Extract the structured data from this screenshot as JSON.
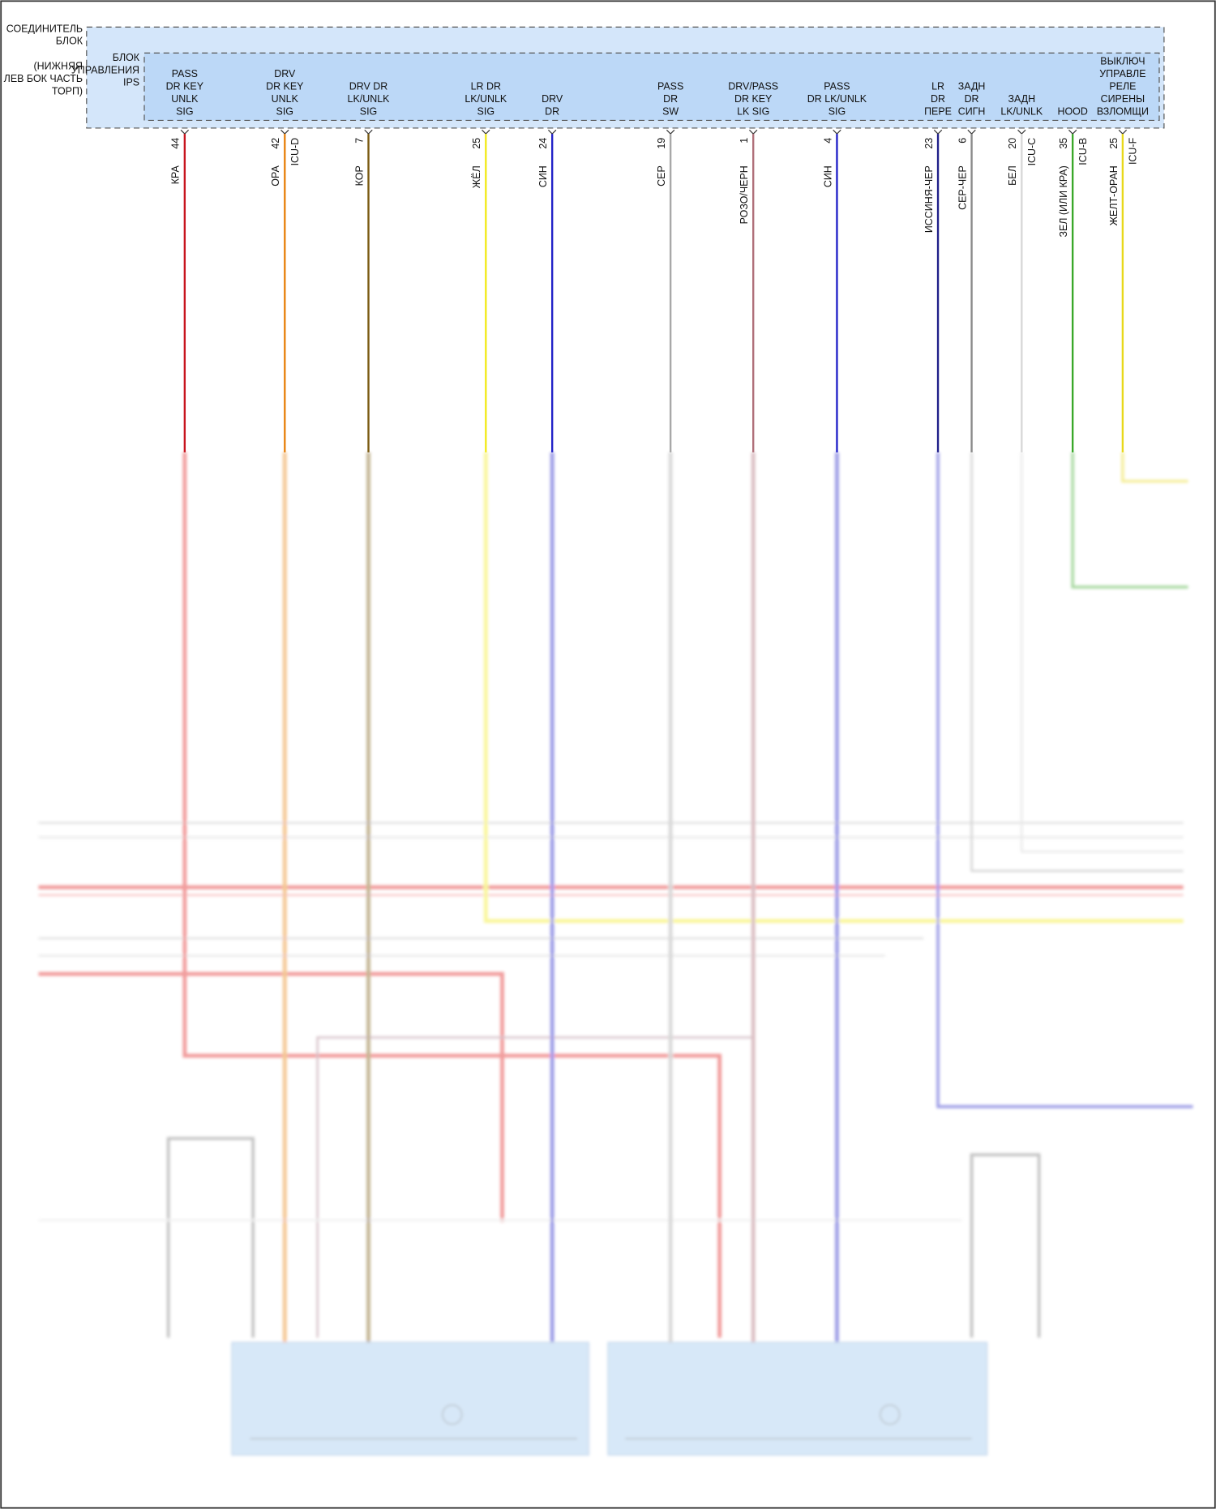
{
  "connector": [
    "СОЕДИНИТЕЛЬ",
    "БЛОК",
    "(НИЖНЯЯ",
    "ЛЕВ БОК ЧАСТЬ",
    "ТОРП)"
  ],
  "module": [
    "БЛОК",
    "УПРАВЛЕНИЯ",
    "IPS"
  ],
  "pins": [
    {
      "label": [
        "PASS",
        "DR KEY",
        "UNLK",
        "SIG"
      ],
      "pin": "44",
      "wire": "КРА",
      "color": "#c8141e"
    },
    {
      "label": [
        "DRV",
        "DR KEY",
        "UNLK",
        "SIG"
      ],
      "pin": "42",
      "wire": "ОРА",
      "icu": "ICU-D",
      "color": "#e8820f"
    },
    {
      "label": [
        "DRV DR",
        "LK/UNLK",
        "SIG"
      ],
      "pin": "7",
      "wire": "КОР",
      "color": "#7a5a10"
    },
    {
      "label": [
        "LR DR",
        "LK/UNLK",
        "SIG"
      ],
      "pin": "25",
      "wire": "ЖЁЛ",
      "color": "#f2ea1c"
    },
    {
      "label": [
        "DRV",
        "DR"
      ],
      "pin": "24",
      "wire": "СИН",
      "color": "#2222c8"
    },
    {
      "label": [
        "PASS",
        "DR",
        "SW"
      ],
      "pin": "19",
      "wire": "СЕР",
      "color": "#a8a8a8"
    },
    {
      "label": [
        "DRV/PASS",
        "DR KEY",
        "LK SIG"
      ],
      "pin": "1",
      "wire": "РОЗО/ЧЕРН",
      "color": "#b0707a"
    },
    {
      "label": [
        "PASS",
        "DR LK/UNLK",
        "SIG"
      ],
      "pin": "4",
      "wire": "СИН",
      "color": "#2222c8"
    },
    {
      "label": [
        "LR",
        "DR",
        "ПЕРЕ"
      ],
      "pin": "23",
      "wire": "ИССИНЯ-ЧЕР",
      "color": "#20208a"
    },
    {
      "label": [
        "ЗАДН",
        "DR",
        "СИГН"
      ],
      "pin": "6",
      "wire": "СЕР-ЧЕР",
      "color": "#8a8a8a"
    },
    {
      "label": [
        "ЗАДН",
        "LK/UNLK"
      ],
      "pin": "20",
      "wire": "БЕЛ",
      "icu": "ICU-C",
      "color": "#d8d8d8"
    },
    {
      "label": [
        "HOOD"
      ],
      "pin": "35",
      "wire": "ЗЕЛ (ИЛИ КРА)",
      "icu": "ICU-B",
      "color": "#3aa82a"
    },
    {
      "label": [
        "ВЫКЛЮЧ",
        "УПРАВЛЕ",
        "РЕЛЕ",
        "СИРЕНЫ",
        "ВЗЛОМЩИ"
      ],
      "pin": "25",
      "wire": "ЖЕЛТ-ОРАН",
      "icu": "ICU-F",
      "color": "#e8d81a"
    }
  ]
}
